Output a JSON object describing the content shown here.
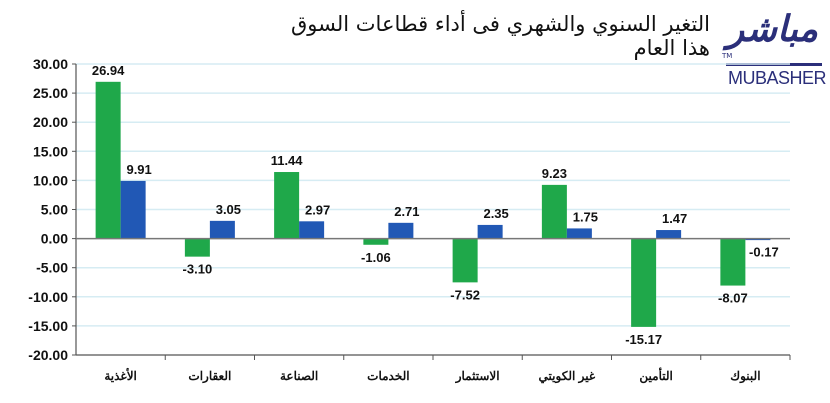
{
  "header": {
    "title": "التغير السنوي والشهري فى أداء قطاعات السوق هذا العام"
  },
  "logo": {
    "arabic": "مباشر",
    "english": "MUBASHER",
    "tm": "TM"
  },
  "colors": {
    "series_annual": "#1fa84a",
    "series_monthly": "#2158b5",
    "gridline": "#d6ecf3",
    "axis": "#555555"
  },
  "chart_data": {
    "type": "bar",
    "title": "التغير السنوي والشهري فى أداء قطاعات السوق هذا العام",
    "xlabel": "",
    "ylabel": "",
    "ylim": [
      -20,
      30
    ],
    "yticks": [
      "30.00",
      "25.00",
      "20.00",
      "15.00",
      "10.00",
      "5.00",
      "0.00",
      "-5.00",
      "-10.00",
      "-15.00",
      "-20.00"
    ],
    "grid": true,
    "legend": "none",
    "categories": [
      "الأغذية",
      "العقارات",
      "الصناعة",
      "الخدمات",
      "الاستثمار",
      "غير الكويتي",
      "التأمين",
      "البنوك"
    ],
    "series": [
      {
        "name": "annual",
        "color": "#1fa84a",
        "values": [
          26.94,
          -3.1,
          11.44,
          -1.06,
          -7.52,
          9.23,
          -15.17,
          -8.07
        ]
      },
      {
        "name": "monthly",
        "color": "#2158b5",
        "values": [
          9.91,
          3.05,
          2.97,
          2.71,
          2.35,
          1.75,
          1.47,
          -0.17
        ]
      }
    ],
    "data_labels": {
      "annual": [
        "26.94",
        "-3.10",
        "11.44",
        "-1.06",
        "-7.52",
        "9.23",
        "-15.17",
        "-8.07"
      ],
      "monthly": [
        "9.91",
        "3.05",
        "2.97",
        "2.71",
        "2.35",
        "1.75",
        "1.47",
        "-0.17"
      ]
    }
  }
}
